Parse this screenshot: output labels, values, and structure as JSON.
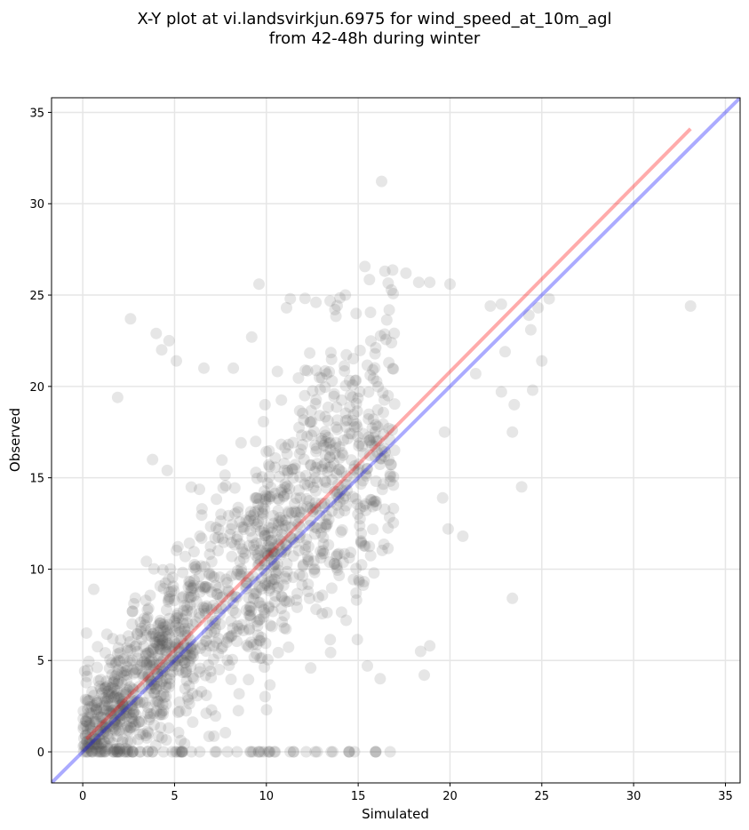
{
  "chart_data": {
    "type": "scatter",
    "title_line1": "X-Y plot at vi.landsvirkjun.6975 for wind_speed_at_10m_agl",
    "title_line2": "from 42-48h during winter",
    "xlabel": "Simulated",
    "ylabel": "Observed",
    "xlim": [
      -1.7,
      35.8
    ],
    "ylim": [
      -1.7,
      35.8
    ],
    "xticks": [
      0,
      5,
      10,
      15,
      20,
      25,
      30,
      35
    ],
    "yticks": [
      0,
      5,
      10,
      15,
      20,
      25,
      30,
      35
    ],
    "grid": true,
    "point_color": "#555555",
    "point_opacity": 0.15,
    "identity_line": {
      "color": "#0000ff",
      "x": [
        -1.7,
        35.8
      ],
      "y": [
        -1.7,
        35.8
      ]
    },
    "fit_line": {
      "color": "#ff0000",
      "x": [
        0.2,
        33.1
      ],
      "y": [
        0.7,
        34.1
      ]
    },
    "outliers": [
      [
        33.1,
        24.4
      ],
      [
        23.4,
        8.4
      ],
      [
        23.9,
        14.5
      ],
      [
        20.7,
        11.8
      ],
      [
        19.9,
        12.2
      ],
      [
        19.6,
        13.9
      ],
      [
        2.6,
        23.7
      ],
      [
        4.0,
        22.9
      ],
      [
        4.7,
        22.5
      ],
      [
        5.1,
        21.4
      ],
      [
        4.3,
        22.0
      ],
      [
        1.9,
        19.4
      ],
      [
        3.8,
        16.0
      ],
      [
        4.6,
        15.4
      ],
      [
        9.6,
        25.6
      ],
      [
        11.3,
        24.8
      ],
      [
        11.1,
        24.3
      ],
      [
        12.7,
        24.6
      ],
      [
        14.3,
        25.0
      ],
      [
        17.6,
        26.2
      ],
      [
        18.3,
        25.7
      ],
      [
        18.9,
        25.7
      ],
      [
        20.0,
        25.6
      ],
      [
        22.2,
        24.4
      ],
      [
        22.8,
        24.5
      ],
      [
        24.3,
        23.9
      ],
      [
        25.4,
        24.8
      ],
      [
        24.8,
        24.3
      ],
      [
        24.4,
        23.1
      ],
      [
        25.0,
        21.4
      ],
      [
        24.5,
        19.8
      ],
      [
        23.4,
        17.5
      ],
      [
        23.5,
        19.0
      ],
      [
        22.8,
        19.7
      ],
      [
        23.0,
        21.9
      ],
      [
        21.4,
        20.7
      ],
      [
        19.7,
        17.5
      ],
      [
        18.4,
        5.5
      ],
      [
        18.9,
        5.8
      ],
      [
        18.6,
        4.2
      ],
      [
        16.2,
        4.0
      ],
      [
        15.5,
        4.7
      ],
      [
        6.6,
        21.0
      ],
      [
        8.2,
        21.0
      ],
      [
        9.2,
        22.7
      ],
      [
        0.6,
        8.9
      ],
      [
        0.2,
        6.5
      ],
      [
        10.1,
        0.0
      ]
    ]
  }
}
